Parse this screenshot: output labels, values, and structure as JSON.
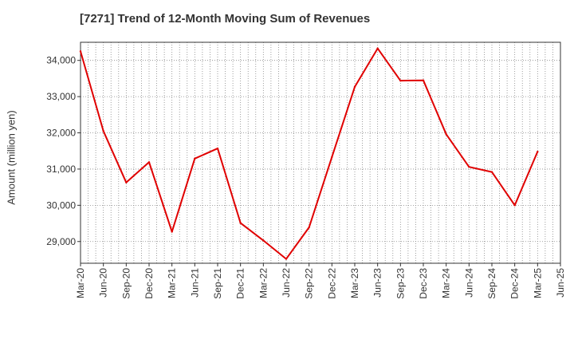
{
  "chart_data": {
    "type": "line",
    "title": "[7271]  Trend of 12-Month Moving Sum of Revenues",
    "ylabel": "Amount (million yen)",
    "xlabel": "",
    "ylim": [
      28400,
      34500
    ],
    "yticks": [
      29000,
      30000,
      31000,
      32000,
      33000,
      34000
    ],
    "ytick_labels": [
      "29,000",
      "30,000",
      "31,000",
      "32,000",
      "33,000",
      "34,000"
    ],
    "categories": [
      "Mar-20",
      "Jun-20",
      "Sep-20",
      "Dec-20",
      "Mar-21",
      "Jun-21",
      "Sep-21",
      "Dec-21",
      "Mar-22",
      "Jun-22",
      "Sep-22",
      "Dec-22",
      "Mar-23",
      "Jun-23",
      "Sep-23",
      "Dec-23",
      "Mar-24",
      "Jun-24",
      "Sep-24",
      "Dec-24",
      "Mar-25",
      "Jun-25"
    ],
    "grid": true,
    "series": [
      {
        "name": "",
        "color": "#e00000",
        "values": [
          34250,
          32050,
          30630,
          31190,
          29270,
          31290,
          31570,
          29510,
          29030,
          28520,
          29390,
          31330,
          33270,
          34330,
          33440,
          33450,
          31960,
          31060,
          30920,
          30000,
          31480,
          null
        ]
      }
    ]
  }
}
